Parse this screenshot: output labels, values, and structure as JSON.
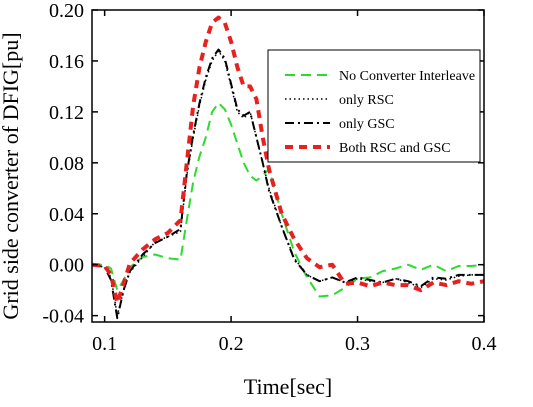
{
  "chart_data": {
    "type": "line",
    "title": "",
    "xlabel": "Time[sec]",
    "ylabel": "Grid side converter of DFIG[pu]",
    "xlim": [
      0.09,
      0.4
    ],
    "ylim": [
      -0.045,
      0.2
    ],
    "x_ticks": [
      {
        "value": 0.1,
        "label": "0.1"
      },
      {
        "value": 0.2,
        "label": "0.2"
      },
      {
        "value": 0.3,
        "label": "0.3"
      },
      {
        "value": 0.4,
        "label": "0.4"
      }
    ],
    "y_ticks": [
      {
        "value": -0.04,
        "label": "-0.04"
      },
      {
        "value": 0.0,
        "label": "0.00"
      },
      {
        "value": 0.04,
        "label": "0.04"
      },
      {
        "value": 0.08,
        "label": "0.08"
      },
      {
        "value": 0.12,
        "label": "0.12"
      },
      {
        "value": 0.16,
        "label": "0.16"
      },
      {
        "value": 0.2,
        "label": "0.20"
      }
    ],
    "grid": false,
    "legend_position": "top-right",
    "series": [
      {
        "name": "No Converter Interleave",
        "color": "#2ddb2d",
        "dash": "dashed",
        "x": [
          0.09,
          0.1,
          0.105,
          0.11,
          0.115,
          0.12,
          0.13,
          0.14,
          0.15,
          0.16,
          0.165,
          0.17,
          0.175,
          0.18,
          0.185,
          0.19,
          0.195,
          0.2,
          0.205,
          0.21,
          0.215,
          0.22,
          0.225,
          0.23,
          0.24,
          0.25,
          0.26,
          0.27,
          0.28,
          0.29,
          0.3,
          0.31,
          0.32,
          0.33,
          0.34,
          0.35,
          0.36,
          0.37,
          0.38,
          0.39,
          0.4
        ],
        "y": [
          0.0,
          0.0,
          -0.003,
          -0.02,
          -0.012,
          -0.002,
          0.006,
          0.008,
          0.005,
          0.004,
          0.035,
          0.065,
          0.085,
          0.1,
          0.12,
          0.127,
          0.122,
          0.11,
          0.095,
          0.08,
          0.07,
          0.066,
          0.07,
          0.075,
          0.04,
          0.01,
          -0.01,
          -0.025,
          -0.024,
          -0.018,
          -0.011,
          -0.01,
          -0.005,
          -0.003,
          0.0,
          -0.004,
          0.0,
          -0.005,
          -0.001,
          -0.001,
          0.0
        ]
      },
      {
        "name": "only RSC",
        "color": "#000000",
        "dash": "dotted",
        "x": [
          0.09,
          0.1,
          0.105,
          0.11,
          0.115,
          0.12,
          0.13,
          0.14,
          0.15,
          0.16,
          0.165,
          0.17,
          0.175,
          0.18,
          0.185,
          0.19,
          0.195,
          0.2,
          0.205,
          0.21,
          0.215,
          0.22,
          0.225,
          0.23,
          0.24,
          0.25,
          0.26,
          0.27,
          0.28,
          0.29,
          0.3,
          0.31,
          0.32,
          0.33,
          0.34,
          0.35,
          0.36,
          0.37,
          0.38,
          0.39,
          0.4
        ],
        "y": [
          0.0,
          -0.002,
          -0.01,
          -0.04,
          -0.02,
          -0.006,
          0.006,
          0.018,
          0.022,
          0.026,
          0.07,
          0.1,
          0.125,
          0.145,
          0.16,
          0.168,
          0.16,
          0.14,
          0.12,
          0.115,
          0.12,
          0.1,
          0.08,
          0.06,
          0.03,
          0.005,
          -0.008,
          -0.013,
          -0.01,
          -0.014,
          -0.011,
          -0.013,
          -0.014,
          -0.011,
          -0.014,
          -0.018,
          -0.011,
          -0.012,
          -0.009,
          -0.008,
          -0.008
        ]
      },
      {
        "name": "only GSC",
        "color": "#000000",
        "dash": "dash-dot",
        "x": [
          0.09,
          0.1,
          0.105,
          0.11,
          0.115,
          0.12,
          0.13,
          0.14,
          0.15,
          0.16,
          0.165,
          0.17,
          0.175,
          0.18,
          0.185,
          0.19,
          0.195,
          0.2,
          0.205,
          0.21,
          0.215,
          0.22,
          0.225,
          0.23,
          0.24,
          0.25,
          0.26,
          0.27,
          0.28,
          0.29,
          0.3,
          0.31,
          0.32,
          0.33,
          0.34,
          0.35,
          0.36,
          0.37,
          0.38,
          0.39,
          0.4
        ],
        "y": [
          0.0,
          -0.002,
          -0.012,
          -0.042,
          -0.02,
          -0.005,
          0.008,
          0.017,
          0.022,
          0.028,
          0.072,
          0.102,
          0.127,
          0.147,
          0.162,
          0.169,
          0.162,
          0.142,
          0.122,
          0.117,
          0.12,
          0.1,
          0.08,
          0.058,
          0.03,
          0.004,
          -0.008,
          -0.013,
          -0.01,
          -0.014,
          -0.01,
          -0.012,
          -0.014,
          -0.011,
          -0.013,
          -0.017,
          -0.01,
          -0.011,
          -0.008,
          -0.008,
          -0.008
        ]
      },
      {
        "name": "Both RSC and GSC",
        "color": "#e82020",
        "dash": "dashed-thick",
        "x": [
          0.09,
          0.1,
          0.105,
          0.11,
          0.115,
          0.12,
          0.13,
          0.14,
          0.15,
          0.16,
          0.165,
          0.17,
          0.175,
          0.18,
          0.185,
          0.19,
          0.195,
          0.2,
          0.205,
          0.21,
          0.215,
          0.22,
          0.225,
          0.23,
          0.24,
          0.25,
          0.26,
          0.27,
          0.28,
          0.29,
          0.3,
          0.31,
          0.32,
          0.33,
          0.34,
          0.35,
          0.36,
          0.37,
          0.38,
          0.39,
          0.4
        ],
        "y": [
          0.0,
          -0.001,
          -0.008,
          -0.03,
          -0.015,
          0.001,
          0.012,
          0.02,
          0.025,
          0.035,
          0.08,
          0.125,
          0.155,
          0.175,
          0.19,
          0.194,
          0.19,
          0.175,
          0.155,
          0.14,
          0.14,
          0.13,
          0.1,
          0.075,
          0.04,
          0.02,
          0.005,
          -0.002,
          0.0,
          -0.015,
          -0.014,
          -0.017,
          -0.014,
          -0.016,
          -0.016,
          -0.02,
          -0.014,
          -0.016,
          -0.013,
          -0.015,
          -0.013
        ]
      }
    ]
  }
}
